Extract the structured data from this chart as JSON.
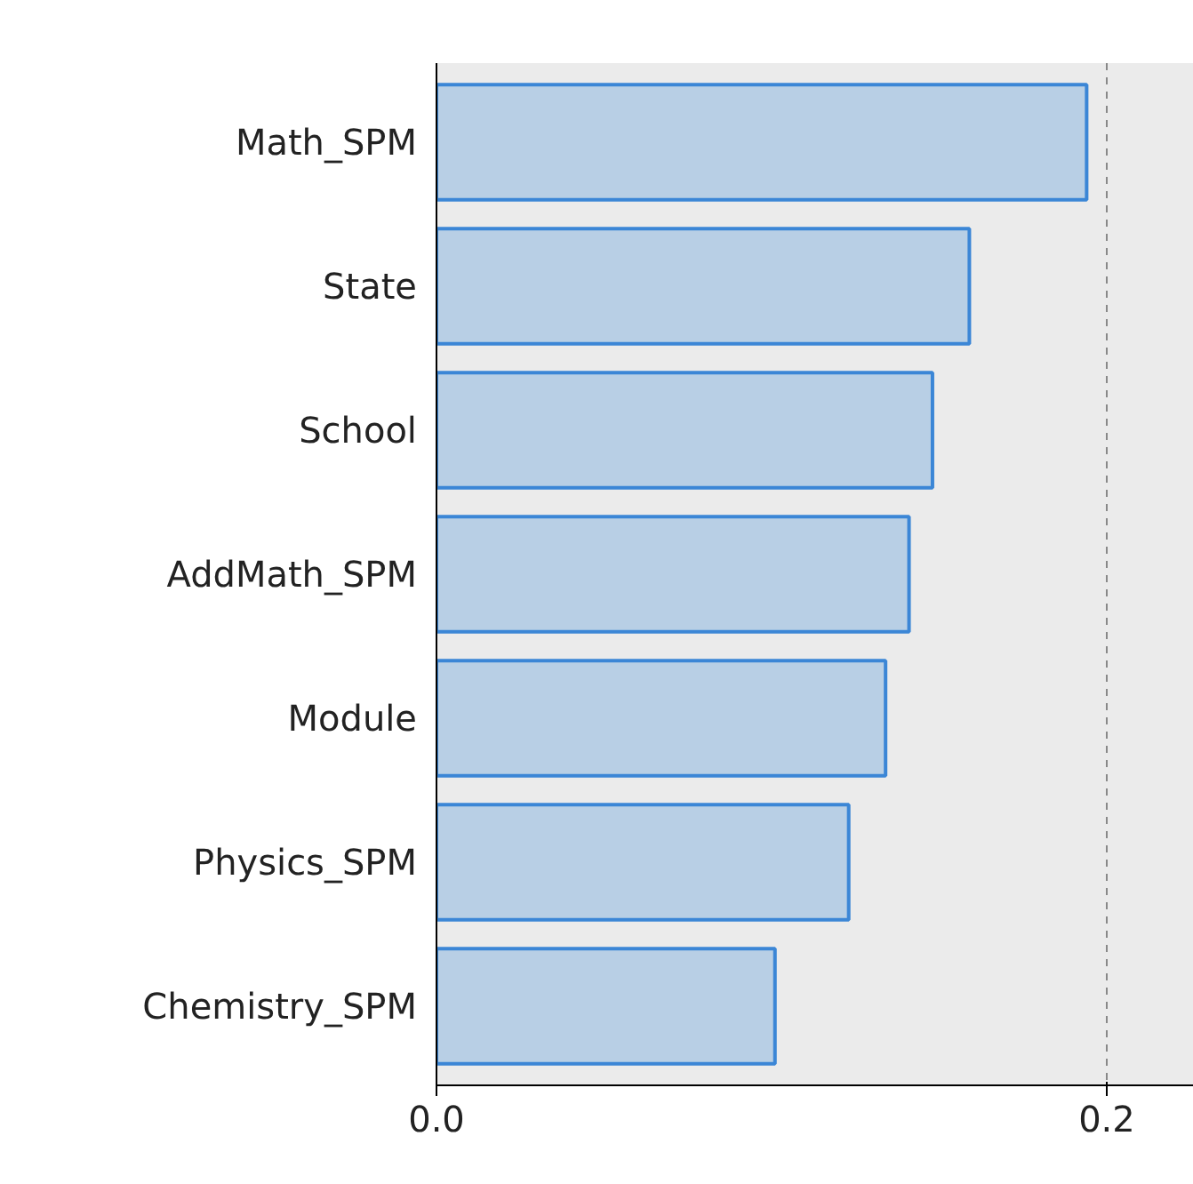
{
  "chart_data": {
    "type": "bar",
    "orientation": "horizontal",
    "categories": [
      "Math_SPM",
      "State",
      "School",
      "AddMath_SPM",
      "Module",
      "Physics_SPM",
      "Chemistry_SPM"
    ],
    "values": [
      0.194,
      0.159,
      0.148,
      0.141,
      0.134,
      0.123,
      0.101
    ],
    "color": "#b8cfe5",
    "xlim": [
      0,
      0.226
    ],
    "xticks": [
      {
        "value": 0,
        "label": "0.0"
      },
      0.2
    ],
    "grid": "x"
  }
}
